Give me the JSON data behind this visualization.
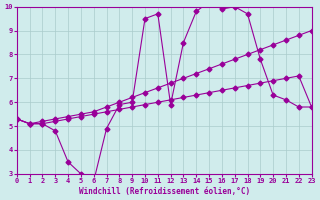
{
  "title": "",
  "xlabel": "Windchill (Refroidissement éolien,°C)",
  "ylabel": "",
  "bg_color": "#d0ecec",
  "line_color": "#990099",
  "grid_color": "#aacccc",
  "xlim": [
    0,
    23
  ],
  "ylim": [
    3,
    10
  ],
  "xticks": [
    0,
    1,
    2,
    3,
    4,
    5,
    6,
    7,
    8,
    9,
    10,
    11,
    12,
    13,
    14,
    15,
    16,
    17,
    18,
    19,
    20,
    21,
    22,
    23
  ],
  "yticks": [
    3,
    4,
    5,
    6,
    7,
    8,
    9,
    10
  ],
  "line1_x": [
    0,
    1,
    2,
    3,
    4,
    5,
    6,
    7,
    8,
    9,
    10,
    11,
    12,
    13,
    14,
    15,
    16,
    17,
    18,
    19,
    20,
    21,
    22,
    23
  ],
  "line1_y": [
    5.3,
    5.1,
    5.1,
    4.8,
    3.5,
    3.0,
    2.7,
    4.9,
    5.9,
    6.0,
    9.5,
    9.7,
    5.9,
    8.5,
    9.8,
    10.2,
    9.9,
    10.0,
    9.7,
    7.8,
    6.3,
    6.1,
    5.8,
    5.8
  ],
  "line2_x": [
    0,
    1,
    2,
    3,
    4,
    5,
    6,
    7,
    8,
    9,
    10,
    11,
    12,
    13,
    14,
    15,
    16,
    17,
    18,
    19,
    20,
    21,
    22,
    23
  ],
  "line2_y": [
    5.3,
    5.1,
    5.2,
    5.3,
    5.4,
    5.5,
    5.6,
    5.8,
    6.0,
    6.2,
    6.4,
    6.6,
    6.8,
    7.0,
    7.2,
    7.4,
    7.6,
    7.8,
    8.0,
    8.2,
    8.4,
    8.6,
    8.8,
    9.0
  ],
  "line3_x": [
    0,
    1,
    2,
    3,
    4,
    5,
    6,
    7,
    8,
    9,
    10,
    11,
    12,
    13,
    14,
    15,
    16,
    17,
    18,
    19,
    20,
    21,
    22,
    23
  ],
  "line3_y": [
    5.3,
    5.1,
    5.1,
    5.2,
    5.3,
    5.4,
    5.5,
    5.6,
    5.7,
    5.8,
    5.9,
    6.0,
    6.1,
    6.2,
    6.3,
    6.4,
    6.5,
    6.6,
    6.7,
    6.8,
    6.9,
    7.0,
    7.1,
    5.8
  ]
}
